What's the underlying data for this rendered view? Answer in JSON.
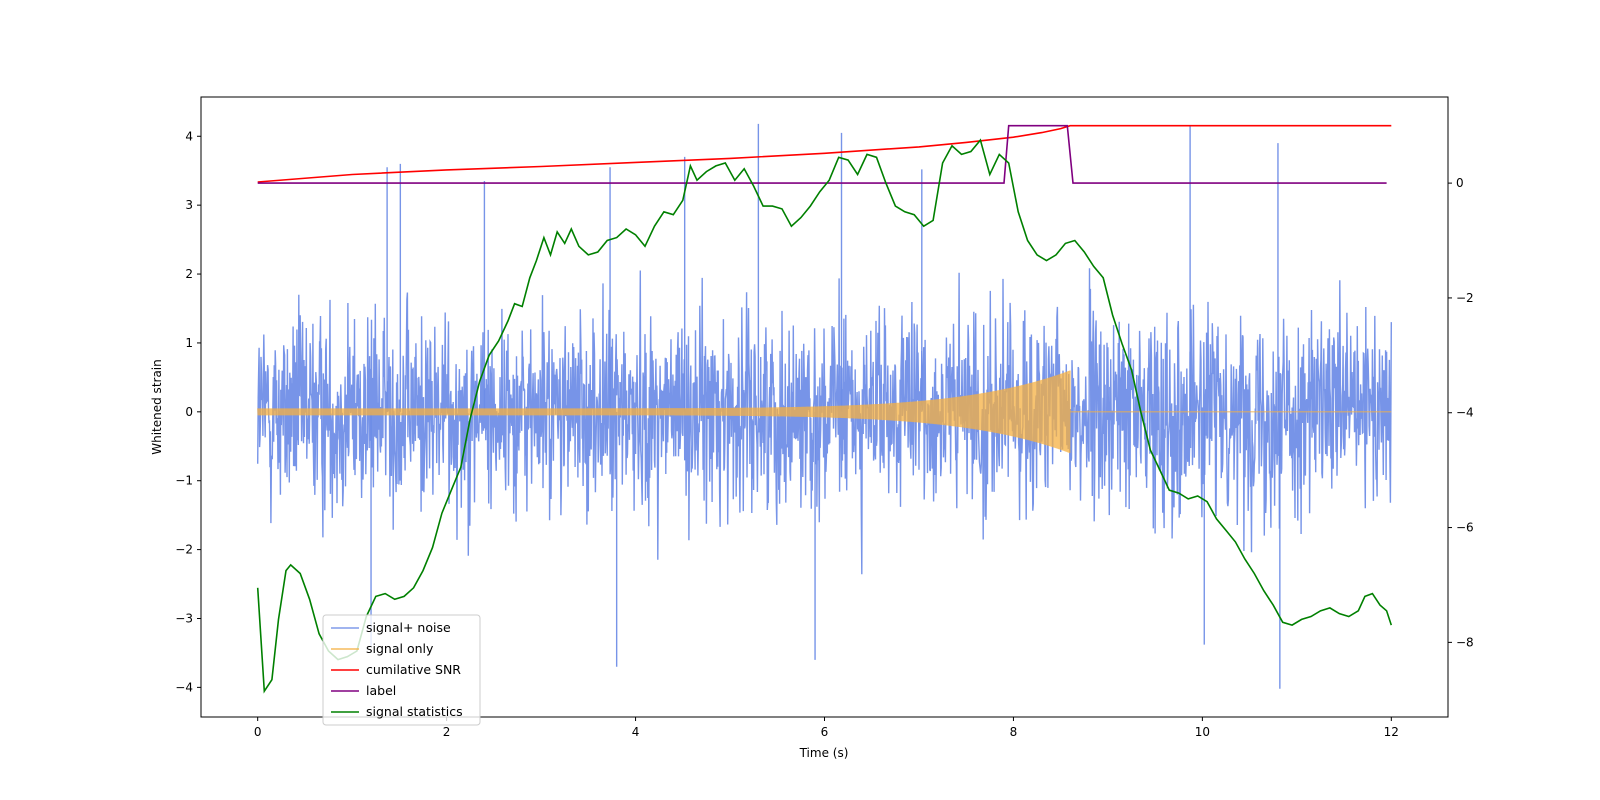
{
  "chart_data": {
    "type": "line",
    "title": "",
    "xlabel": "Time (s)",
    "ylabel": "Whitened strain",
    "y2label": "",
    "xlim": [
      -0.6,
      12.6
    ],
    "ylim": [
      -4.43,
      4.57
    ],
    "y2lim": [
      -9.3,
      1.5
    ],
    "xticks": [
      0,
      2,
      4,
      6,
      8,
      10,
      12
    ],
    "yticks": [
      -4,
      -3,
      -2,
      -1,
      0,
      1,
      2,
      3,
      4
    ],
    "y2ticks": [
      -8,
      -6,
      -4,
      -2,
      0
    ],
    "grid": false,
    "legend_position": "lower-left",
    "series": [
      {
        "name": "signal+ noise",
        "color": "#6b8be6",
        "axis": "left",
        "description": "whitened noise plus signal, roughly gaussian, sigma about 0.9, x from 0 to 12",
        "noise_sigma": 0.9,
        "x_range": [
          0,
          12
        ],
        "spikes": [
          {
            "x": 1.37,
            "y": 3.55
          },
          {
            "x": 1.51,
            "y": 3.6
          },
          {
            "x": 2.4,
            "y": 3.35
          },
          {
            "x": 3.73,
            "y": 3.55
          },
          {
            "x": 4.52,
            "y": 3.7
          },
          {
            "x": 5.3,
            "y": 4.18
          },
          {
            "x": 6.18,
            "y": 4.05
          },
          {
            "x": 7.03,
            "y": 3.52
          },
          {
            "x": 9.87,
            "y": 4.15
          },
          {
            "x": 10.8,
            "y": 3.9
          },
          {
            "x": 3.8,
            "y": -3.7
          },
          {
            "x": 5.9,
            "y": -3.6
          },
          {
            "x": 10.82,
            "y": -4.02
          },
          {
            "x": 10.02,
            "y": -3.38
          },
          {
            "x": 1.2,
            "y": -3.4
          }
        ]
      },
      {
        "name": "signal only",
        "color": "#f5b041",
        "axis": "left",
        "description": "chirp signal, amplitude grows from about 0.05 to 0.6 until merger at 8.6 s, then zero",
        "amplitude_start": 0.05,
        "amplitude_peak": 0.6,
        "merger_time": 8.6,
        "x_range": [
          0,
          12
        ]
      },
      {
        "name": "cumilative SNR",
        "color": "#ff0000",
        "axis": "right",
        "points": [
          [
            0,
            0.02
          ],
          [
            1,
            0.15
          ],
          [
            2,
            0.23
          ],
          [
            3,
            0.29
          ],
          [
            4,
            0.36
          ],
          [
            5,
            0.43
          ],
          [
            6,
            0.52
          ],
          [
            7,
            0.63
          ],
          [
            7.5,
            0.71
          ],
          [
            8,
            0.8
          ],
          [
            8.3,
            0.88
          ],
          [
            8.5,
            0.95
          ],
          [
            8.6,
            1.0
          ],
          [
            12,
            1.0
          ]
        ]
      },
      {
        "name": "label",
        "color": "#800080",
        "axis": "right",
        "points": [
          [
            0,
            0
          ],
          [
            7.9,
            0
          ],
          [
            7.95,
            1.0
          ],
          [
            8.57,
            1.0
          ],
          [
            8.63,
            0
          ],
          [
            11.95,
            0
          ]
        ]
      },
      {
        "name": "signal statistics",
        "color": "#008000",
        "axis": "right",
        "points": [
          [
            0,
            -7.05
          ],
          [
            0.07,
            -8.85
          ],
          [
            0.15,
            -8.65
          ],
          [
            0.22,
            -7.6
          ],
          [
            0.3,
            -6.75
          ],
          [
            0.35,
            -6.65
          ],
          [
            0.45,
            -6.8
          ],
          [
            0.55,
            -7.25
          ],
          [
            0.65,
            -7.85
          ],
          [
            0.75,
            -8.15
          ],
          [
            0.85,
            -8.3
          ],
          [
            0.95,
            -8.25
          ],
          [
            1.05,
            -8.15
          ],
          [
            1.15,
            -7.55
          ],
          [
            1.25,
            -7.2
          ],
          [
            1.35,
            -7.15
          ],
          [
            1.45,
            -7.25
          ],
          [
            1.55,
            -7.2
          ],
          [
            1.65,
            -7.05
          ],
          [
            1.75,
            -6.75
          ],
          [
            1.85,
            -6.35
          ],
          [
            1.95,
            -5.75
          ],
          [
            2.05,
            -5.35
          ],
          [
            2.15,
            -4.95
          ],
          [
            2.25,
            -4.1
          ],
          [
            2.35,
            -3.45
          ],
          [
            2.45,
            -3.0
          ],
          [
            2.55,
            -2.75
          ],
          [
            2.65,
            -2.4
          ],
          [
            2.72,
            -2.1
          ],
          [
            2.8,
            -2.15
          ],
          [
            2.88,
            -1.65
          ],
          [
            2.95,
            -1.35
          ],
          [
            3.03,
            -0.95
          ],
          [
            3.1,
            -1.25
          ],
          [
            3.17,
            -0.85
          ],
          [
            3.25,
            -1.05
          ],
          [
            3.32,
            -0.8
          ],
          [
            3.4,
            -1.1
          ],
          [
            3.5,
            -1.25
          ],
          [
            3.6,
            -1.2
          ],
          [
            3.7,
            -1.0
          ],
          [
            3.8,
            -0.95
          ],
          [
            3.9,
            -0.8
          ],
          [
            4.0,
            -0.9
          ],
          [
            4.1,
            -1.1
          ],
          [
            4.2,
            -0.75
          ],
          [
            4.3,
            -0.5
          ],
          [
            4.4,
            -0.55
          ],
          [
            4.5,
            -0.3
          ],
          [
            4.58,
            0.3
          ],
          [
            4.65,
            0.05
          ],
          [
            4.75,
            0.2
          ],
          [
            4.85,
            0.3
          ],
          [
            4.95,
            0.35
          ],
          [
            5.05,
            0.05
          ],
          [
            5.15,
            0.25
          ],
          [
            5.25,
            -0.05
          ],
          [
            5.35,
            -0.4
          ],
          [
            5.45,
            -0.4
          ],
          [
            5.55,
            -0.45
          ],
          [
            5.65,
            -0.75
          ],
          [
            5.75,
            -0.6
          ],
          [
            5.85,
            -0.4
          ],
          [
            5.95,
            -0.15
          ],
          [
            6.05,
            0.05
          ],
          [
            6.15,
            0.45
          ],
          [
            6.25,
            0.4
          ],
          [
            6.35,
            0.15
          ],
          [
            6.45,
            0.5
          ],
          [
            6.55,
            0.45
          ],
          [
            6.65,
            0.0
          ],
          [
            6.75,
            -0.4
          ],
          [
            6.85,
            -0.5
          ],
          [
            6.95,
            -0.55
          ],
          [
            7.05,
            -0.75
          ],
          [
            7.15,
            -0.65
          ],
          [
            7.25,
            0.35
          ],
          [
            7.35,
            0.65
          ],
          [
            7.45,
            0.5
          ],
          [
            7.55,
            0.55
          ],
          [
            7.65,
            0.75
          ],
          [
            7.75,
            0.15
          ],
          [
            7.85,
            0.5
          ],
          [
            7.95,
            0.35
          ],
          [
            8.05,
            -0.5
          ],
          [
            8.15,
            -1.0
          ],
          [
            8.25,
            -1.25
          ],
          [
            8.35,
            -1.35
          ],
          [
            8.45,
            -1.25
          ],
          [
            8.55,
            -1.05
          ],
          [
            8.65,
            -1.0
          ],
          [
            8.75,
            -1.2
          ],
          [
            8.85,
            -1.45
          ],
          [
            8.95,
            -1.65
          ],
          [
            9.05,
            -2.3
          ],
          [
            9.15,
            -2.8
          ],
          [
            9.25,
            -3.25
          ],
          [
            9.35,
            -4.0
          ],
          [
            9.45,
            -4.65
          ],
          [
            9.55,
            -5.0
          ],
          [
            9.65,
            -5.35
          ],
          [
            9.75,
            -5.4
          ],
          [
            9.85,
            -5.5
          ],
          [
            9.95,
            -5.45
          ],
          [
            10.05,
            -5.55
          ],
          [
            10.15,
            -5.85
          ],
          [
            10.25,
            -6.05
          ],
          [
            10.35,
            -6.25
          ],
          [
            10.45,
            -6.55
          ],
          [
            10.55,
            -6.8
          ],
          [
            10.65,
            -7.1
          ],
          [
            10.75,
            -7.35
          ],
          [
            10.85,
            -7.65
          ],
          [
            10.95,
            -7.7
          ],
          [
            11.05,
            -7.6
          ],
          [
            11.15,
            -7.55
          ],
          [
            11.25,
            -7.45
          ],
          [
            11.35,
            -7.4
          ],
          [
            11.45,
            -7.5
          ],
          [
            11.55,
            -7.55
          ],
          [
            11.65,
            -7.45
          ],
          [
            11.72,
            -7.2
          ],
          [
            11.8,
            -7.15
          ],
          [
            11.88,
            -7.35
          ],
          [
            11.95,
            -7.45
          ],
          [
            12.0,
            -7.7
          ]
        ]
      }
    ]
  }
}
